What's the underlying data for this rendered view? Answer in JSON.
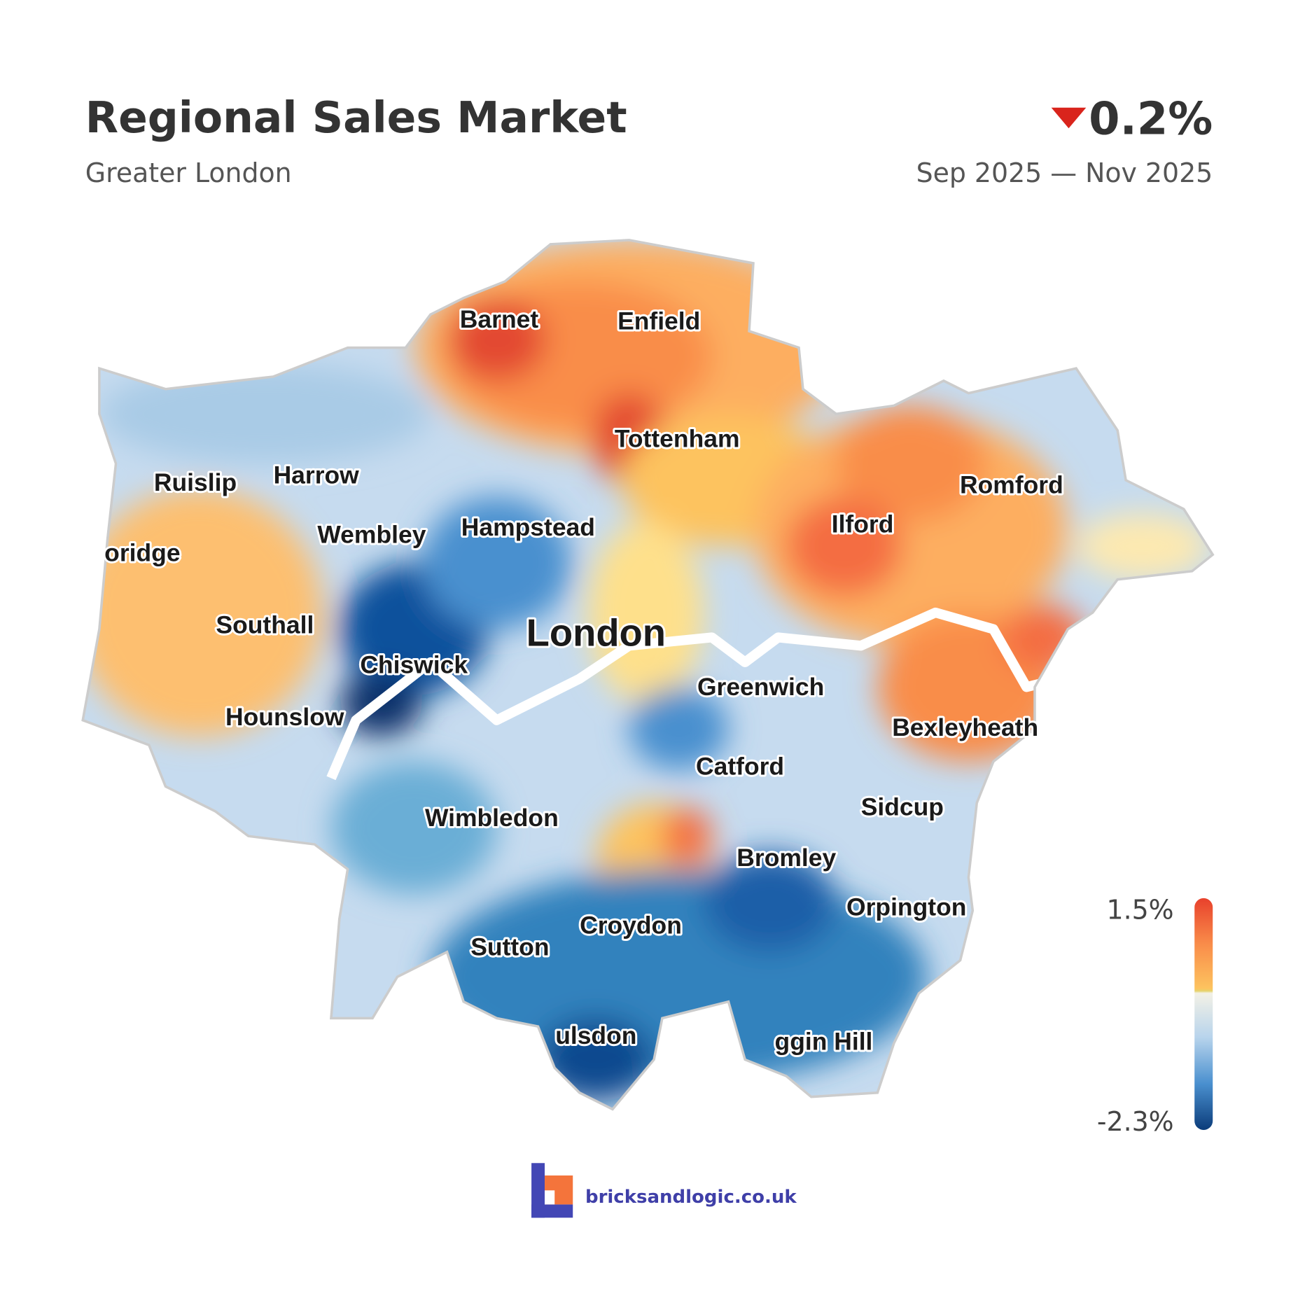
{
  "header": {
    "title": "Regional Sales Market",
    "subtitle": "Greater London",
    "change": "0.2%",
    "direction": "down",
    "period": "Sep 2025 — Nov 2025"
  },
  "map": {
    "labels": [
      "Barnet",
      "Enfield",
      "Tottenham",
      "Ruislip",
      "Harrow",
      "Romford",
      "Wembley",
      "Hampstead",
      "Ilford",
      "oridge",
      "Southall",
      "London",
      "Chiswick",
      "Greenwich",
      "Hounslow",
      "Bexleyheath",
      "Catford",
      "Sidcup",
      "Wimbledon",
      "Bromley",
      "Orpington",
      "Croydon",
      "Sutton",
      "ulsdon",
      "ggin Hill"
    ]
  },
  "legend": {
    "max": "1.5%",
    "min": "-2.3%"
  },
  "footer": {
    "brand": "bricksandlogic.co.uk"
  }
}
